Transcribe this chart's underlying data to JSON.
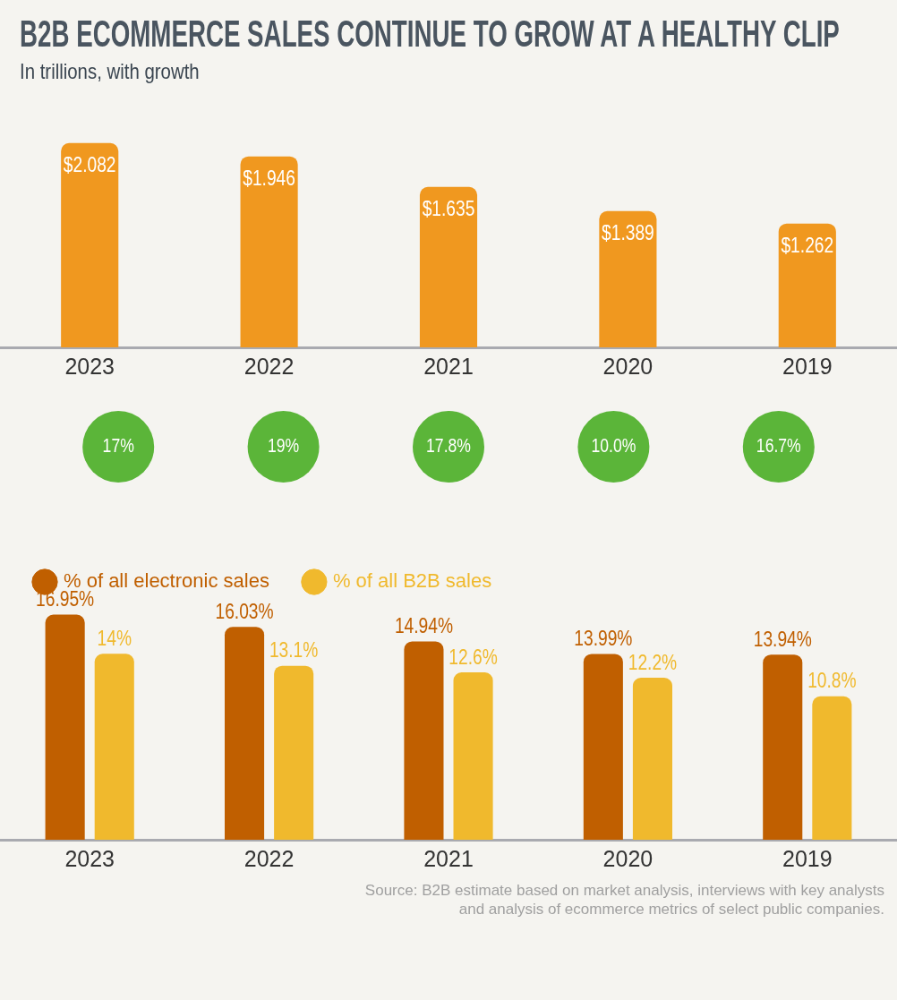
{
  "chart_data": [
    {
      "type": "bar",
      "title": "B2B ECOMMERCE SALES CONTINUE TO GROW AT A HEALTHY CLIP",
      "subtitle": "In trillions, with growth",
      "categories": [
        "2023",
        "2022",
        "2021",
        "2020",
        "2019"
      ],
      "values": [
        2.082,
        1.946,
        1.635,
        1.389,
        1.262
      ],
      "value_labels": [
        "$2.082",
        "$1.946",
        "$1.635",
        "$1.389",
        "$1.262"
      ],
      "color": "#f0981f",
      "grid": false,
      "legend": false,
      "tick_labels": "x"
    },
    {
      "type": "other",
      "categories": [
        null,
        null,
        null,
        null,
        null
      ],
      "values": [
        17,
        19,
        17.8,
        10.0,
        16.7
      ],
      "value_labels": [
        "17%",
        "19%",
        "17.8%",
        "10.0%",
        "16.7%"
      ],
      "color": "#5bb539"
    },
    {
      "type": "bar",
      "categories": [
        "2023",
        "2022",
        "2021",
        "2020",
        "2019"
      ],
      "series": [
        {
          "name": "% of all electronic sales",
          "color": "#c05f00",
          "values": [
            16.95,
            16.03,
            14.94,
            13.99,
            13.94
          ],
          "value_labels": [
            "16.95%",
            "16.03%",
            "14.94%",
            "13.99%",
            "13.94%"
          ]
        },
        {
          "name": "% of all B2B sales",
          "color": "#f0b92d",
          "values": [
            14,
            13.1,
            12.6,
            12.2,
            10.8
          ],
          "value_labels": [
            "14%",
            "13.1%",
            "12.6%",
            "12.2%",
            "10.8%"
          ]
        }
      ],
      "grid": false,
      "legend": "top left",
      "tick_labels": "x",
      "annotations": [
        "Source: B2B estimate based on market analysis, interviews with key analysts and analysis of ecommerce metrics of select public companies."
      ]
    }
  ]
}
